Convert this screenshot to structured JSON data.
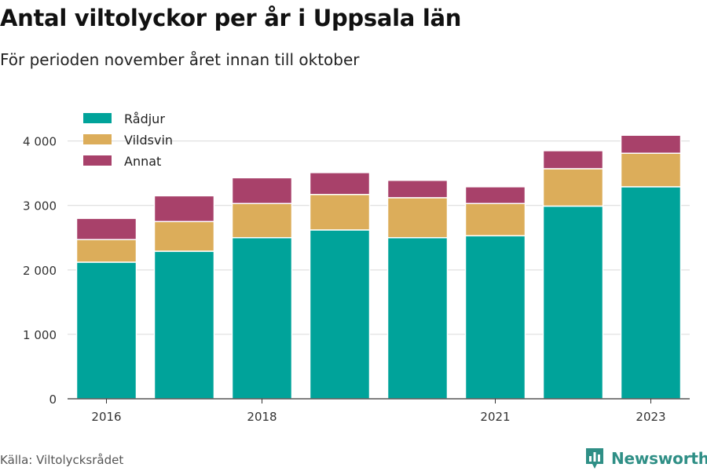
{
  "header": {
    "title": "Antal viltolyckor per år i Uppsala län",
    "subtitle": "För perioden november året innan till oktober"
  },
  "footer": {
    "source": "Källa: Viltolycksrådet",
    "brand": "Newsworthy",
    "brand_icon": "bar-chart-logo-icon"
  },
  "colors": {
    "Rådjur": "#00a39a",
    "Vildsvin": "#dcad5a",
    "Annat": "#a8416a",
    "grid": "#d9d9d9",
    "brand": "#2f8f86"
  },
  "chart_data": {
    "type": "bar",
    "stacked": true,
    "categories": [
      "2016",
      "2017",
      "2018",
      "2019",
      "2020",
      "2021",
      "2022",
      "2023"
    ],
    "x_tick_labels": [
      "2016",
      "",
      "2018",
      "",
      "",
      "2021",
      "",
      "2023"
    ],
    "series": [
      {
        "name": "Rådjur",
        "values": [
          2120,
          2290,
          2500,
          2620,
          2500,
          2530,
          2990,
          3290
        ]
      },
      {
        "name": "Vildsvin",
        "values": [
          350,
          460,
          530,
          550,
          620,
          500,
          580,
          520
        ]
      },
      {
        "name": "Annat",
        "values": [
          330,
          400,
          400,
          340,
          270,
          260,
          280,
          280
        ]
      }
    ],
    "ylim": [
      0,
      4300
    ],
    "yticks": [
      0,
      1000,
      2000,
      3000,
      4000
    ],
    "ytick_labels": [
      "0",
      "1 000",
      "2 000",
      "3 000",
      "4 000"
    ],
    "grid": true,
    "legend": "top-left"
  }
}
